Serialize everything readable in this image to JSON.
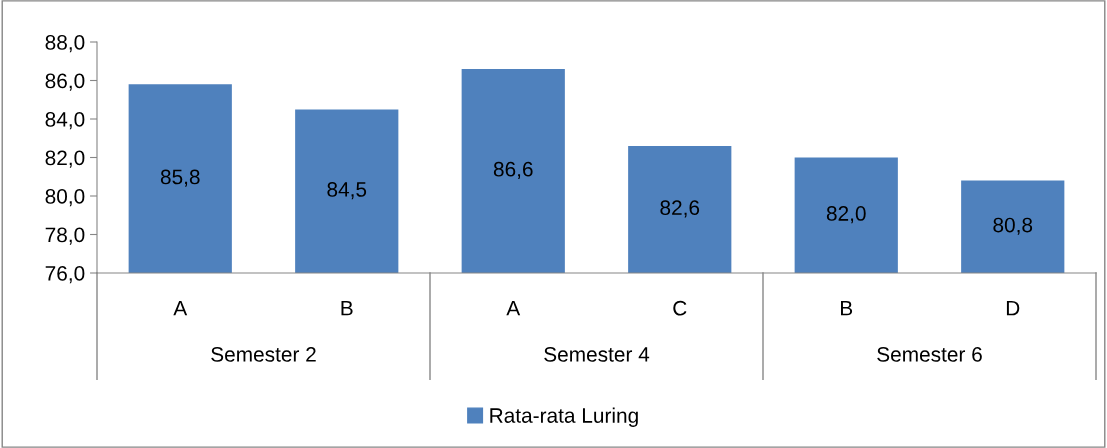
{
  "chart_data": {
    "type": "bar",
    "categories": [
      "A",
      "B",
      "A",
      "C",
      "B",
      "D"
    ],
    "series": [
      {
        "name": "Rata-rata Luring",
        "color": "#4f81bd",
        "values": [
          85.8,
          84.5,
          86.6,
          82.6,
          82.0,
          80.8
        ],
        "value_labels": [
          "85,8",
          "84,5",
          "86,6",
          "82,6",
          "82,0",
          "80,8"
        ]
      }
    ],
    "ylim": [
      76,
      88
    ],
    "yticks": [
      {
        "value": 76,
        "label": "76,0"
      },
      {
        "value": 78,
        "label": "78,0"
      },
      {
        "value": 80,
        "label": "80,0"
      },
      {
        "value": 82,
        "label": "82,0"
      },
      {
        "value": 84,
        "label": "84,0"
      },
      {
        "value": 86,
        "label": "86,0"
      },
      {
        "value": 88,
        "label": "88,0"
      }
    ],
    "annotations": [
      "Semester 2",
      "Semester 4",
      "Semester 6"
    ],
    "grid": false,
    "legend": "bottom"
  }
}
